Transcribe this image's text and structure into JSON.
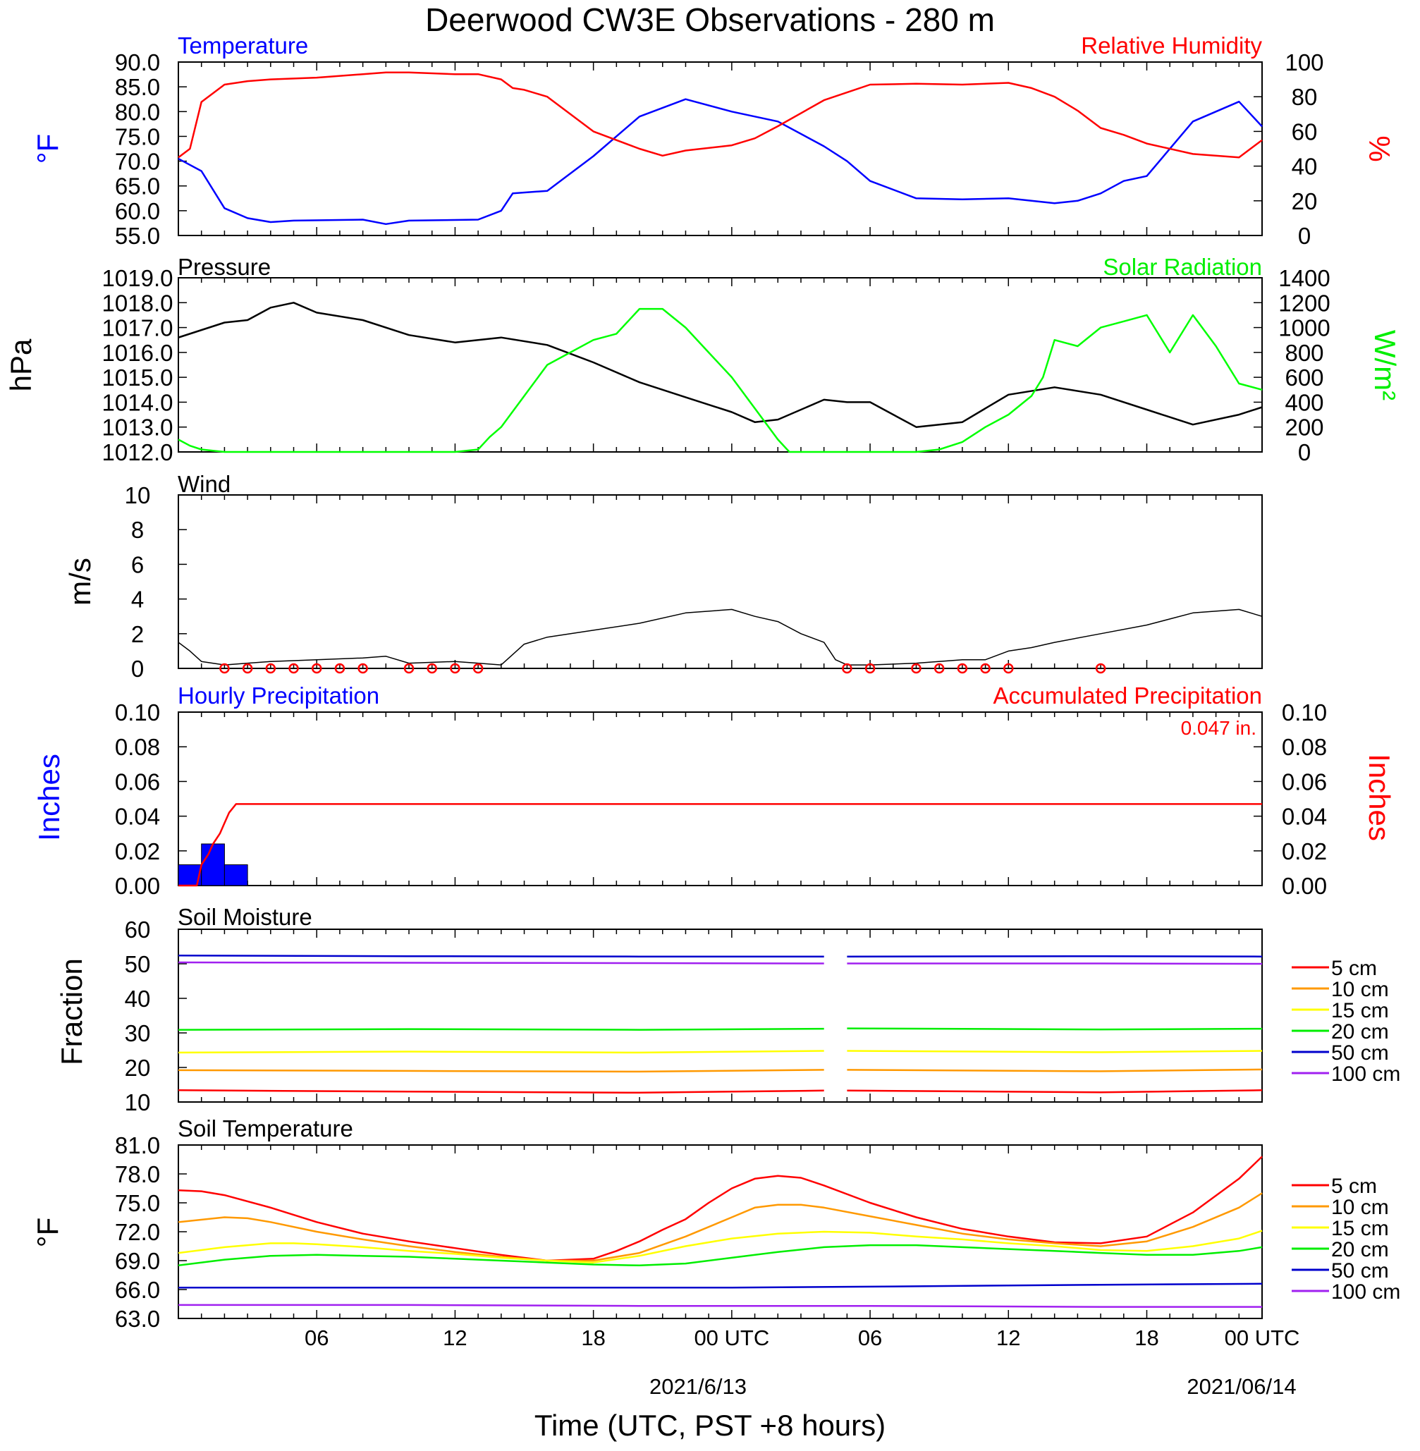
{
  "figure": {
    "title": "Deerwood CW3E Observations - 280 m",
    "xlabel": "Time (UTC, PST +8 hours)",
    "x_ticks": [
      "06",
      "12",
      "18",
      "00 UTC",
      "06",
      "12",
      "18",
      "00 UTC"
    ],
    "x_dates": [
      "2021/6/13",
      "2021/06/14"
    ],
    "colors": {
      "temperature": "#0000ff",
      "humidity": "#ff0000",
      "pressure": "#000000",
      "solar": "#00ff00",
      "precip_bar": "#0000ff",
      "accum": "#ff0000"
    }
  },
  "legends": {
    "soil_depths": [
      "5 cm",
      "10 cm",
      "15 cm",
      "20 cm",
      "50 cm",
      "100 cm"
    ],
    "soil_colors": [
      "#ff0000",
      "#ff9900",
      "#ffff00",
      "#00ee00",
      "#0000cc",
      "#a020f0"
    ]
  },
  "chart_data": [
    {
      "type": "line",
      "panel": "temperature_humidity",
      "title_left": "Temperature",
      "title_right": "Relative Humidity",
      "ylabel": "°F",
      "ylabel_right": "%",
      "ylim": [
        55,
        90
      ],
      "ylim_right": [
        0,
        100
      ],
      "y_ticks": [
        "90.0",
        "85.0",
        "80.0",
        "75.0",
        "70.0",
        "65.0",
        "60.0",
        "55.0"
      ],
      "y_ticks_right": [
        "100",
        "80",
        "60",
        "40",
        "20",
        "0"
      ],
      "series": [
        {
          "name": "Temperature",
          "axis": "left",
          "color": "#0000ff",
          "x": [
            0,
            1,
            2,
            3,
            4,
            5,
            8,
            9,
            10,
            13,
            14,
            14.5,
            16,
            18,
            20,
            22,
            24,
            26,
            28,
            29,
            30,
            32,
            34,
            36,
            38,
            39,
            40,
            41,
            42,
            44,
            46,
            47
          ],
          "y": [
            70.5,
            68,
            60.5,
            58.5,
            57.7,
            58,
            58.2,
            57.3,
            58,
            58.2,
            60,
            63.5,
            64,
            71,
            79,
            82.5,
            80,
            78,
            73,
            70,
            66,
            62.5,
            62.3,
            62.5,
            61.5,
            62,
            63.5,
            66,
            67,
            78,
            82,
            77
          ]
        },
        {
          "name": "Relative Humidity",
          "axis": "right",
          "color": "#ff0000",
          "x": [
            0,
            0.5,
            1,
            2,
            3,
            4,
            6,
            8,
            9,
            10,
            12,
            13,
            14,
            14.5,
            15,
            16,
            18,
            20,
            21,
            22,
            24,
            25,
            26,
            28,
            30,
            32,
            34,
            36,
            37,
            38,
            39,
            40,
            41,
            42,
            44,
            46,
            47
          ],
          "y": [
            45,
            50,
            77,
            87,
            89,
            90,
            91,
            93,
            94,
            94,
            93,
            93,
            90,
            85,
            84,
            80,
            60,
            50,
            46,
            49,
            52,
            56,
            63,
            78,
            87,
            87.5,
            87,
            88,
            85,
            80,
            72,
            62,
            58,
            53,
            47,
            45,
            55
          ]
        }
      ]
    },
    {
      "type": "line",
      "panel": "pressure_solar",
      "title_left": "Pressure",
      "title_right": "Solar Radiation",
      "ylabel": "hPa",
      "ylabel_right": "W/m²",
      "ylim": [
        1012,
        1019
      ],
      "ylim_right": [
        0,
        1400
      ],
      "y_ticks": [
        "1019.0",
        "1018.0",
        "1017.0",
        "1016.0",
        "1015.0",
        "1014.0",
        "1013.0",
        "1012.0"
      ],
      "y_ticks_right": [
        "1400",
        "1200",
        "1000",
        "800",
        "600",
        "400",
        "200",
        "0"
      ],
      "series": [
        {
          "name": "Pressure",
          "axis": "left",
          "color": "#000000",
          "x": [
            0,
            2,
            3,
            4,
            5,
            6,
            8,
            10,
            12,
            14,
            16,
            18,
            20,
            22,
            24,
            25,
            26,
            28,
            29,
            30,
            32,
            34,
            36,
            38,
            40,
            42,
            44,
            46,
            47
          ],
          "y": [
            1016.6,
            1017.2,
            1017.3,
            1017.8,
            1018,
            1017.6,
            1017.3,
            1016.7,
            1016.4,
            1016.6,
            1016.3,
            1015.6,
            1014.8,
            1014.2,
            1013.6,
            1013.2,
            1013.3,
            1014.1,
            1014,
            1014,
            1013,
            1013.2,
            1014.3,
            1014.6,
            1014.3,
            1013.7,
            1013.1,
            1013.5,
            1013.8
          ]
        },
        {
          "name": "Solar Radiation",
          "axis": "right",
          "color": "#00ff00",
          "x": [
            0,
            0.5,
            1,
            2,
            4,
            8,
            12,
            13,
            13.5,
            14,
            15,
            16,
            18,
            19,
            20,
            21,
            22,
            23,
            24,
            25,
            26,
            26.5,
            27,
            28,
            30,
            32,
            33,
            34,
            35,
            36,
            37,
            37.5,
            38,
            39,
            40,
            41,
            42,
            43,
            44,
            45,
            46,
            47
          ],
          "y": [
            100,
            50,
            20,
            0,
            0,
            0,
            0,
            20,
            120,
            200,
            450,
            700,
            900,
            950,
            1150,
            1150,
            1000,
            800,
            600,
            350,
            100,
            0,
            0,
            0,
            0,
            0,
            20,
            80,
            200,
            300,
            450,
            600,
            900,
            850,
            1000,
            1050,
            1100,
            800,
            1100,
            850,
            550,
            500
          ]
        }
      ]
    },
    {
      "type": "line",
      "panel": "wind",
      "title_left": "Wind",
      "ylabel": "m/s",
      "ylim": [
        0,
        10
      ],
      "y_ticks": [
        "10",
        "8",
        "6",
        "4",
        "2",
        "0"
      ],
      "series": [
        {
          "name": "Wind",
          "axis": "left",
          "color": "#000000",
          "x": [
            0,
            0.5,
            1,
            2,
            3,
            4,
            6,
            8,
            9,
            10,
            12,
            13,
            14,
            14.5,
            15,
            16,
            18,
            20,
            22,
            24,
            25,
            26,
            27,
            28,
            28.5,
            29,
            30,
            32,
            34,
            35,
            36,
            37,
            38,
            40,
            42,
            44,
            46,
            47
          ],
          "y": [
            1.5,
            1.0,
            0.4,
            0.2,
            0.3,
            0.4,
            0.5,
            0.6,
            0.7,
            0.3,
            0.4,
            0.3,
            0.2,
            0.8,
            1.4,
            1.8,
            2.2,
            2.6,
            3.2,
            3.4,
            3.0,
            2.7,
            2.0,
            1.5,
            0.5,
            0.2,
            0.2,
            0.3,
            0.5,
            0.5,
            1.0,
            1.2,
            1.5,
            2.0,
            2.5,
            3.2,
            3.4,
            3.0
          ]
        }
      ],
      "calm_circles_x": [
        2,
        3,
        4,
        5,
        6,
        7,
        8,
        10,
        11,
        12,
        13,
        29,
        30,
        32,
        33,
        34,
        35,
        36,
        40
      ]
    },
    {
      "type": "bar",
      "panel": "precipitation",
      "title_left": "Hourly Precipitation",
      "title_right": "Accumulated Precipitation",
      "annotation": "0.047 in.",
      "ylabel": "Inches",
      "ylabel_right": "Inches",
      "ylim": [
        0,
        0.1
      ],
      "ylim_right": [
        0,
        0.1
      ],
      "y_ticks": [
        "0.10",
        "0.08",
        "0.06",
        "0.04",
        "0.02",
        "0.00"
      ],
      "y_ticks_right": [
        "0.10",
        "0.08",
        "0.06",
        "0.04",
        "0.02",
        "0.00"
      ],
      "hourly": {
        "name": "Hourly Precipitation",
        "x_start": [
          0,
          1,
          2
        ],
        "values": [
          0.012,
          0.024,
          0.012
        ]
      },
      "series": [
        {
          "name": "Accumulated Precipitation",
          "axis": "right",
          "color": "#ff0000",
          "x": [
            0,
            0.8,
            1.0,
            1.3,
            1.5,
            1.8,
            2.0,
            2.2,
            2.5,
            47
          ],
          "y": [
            0,
            0,
            0.012,
            0.018,
            0.024,
            0.03,
            0.036,
            0.042,
            0.047,
            0.047
          ]
        }
      ]
    },
    {
      "type": "line",
      "panel": "soil_moisture",
      "title_left": "Soil Moisture",
      "ylabel": "Fraction",
      "ylim": [
        10,
        60
      ],
      "y_ticks": [
        "60",
        "50",
        "40",
        "30",
        "20",
        "10"
      ],
      "gap_x": [
        28,
        29
      ],
      "series": [
        {
          "name": "5 cm",
          "color": "#ff0000",
          "x": [
            0,
            10,
            20,
            28,
            29,
            40,
            47
          ],
          "y": [
            13.4,
            13.0,
            12.7,
            13.3,
            13.3,
            12.8,
            13.4
          ]
        },
        {
          "name": "10 cm",
          "color": "#ff9900",
          "x": [
            0,
            10,
            20,
            28,
            29,
            40,
            47
          ],
          "y": [
            19.2,
            19.0,
            18.8,
            19.3,
            19.3,
            18.9,
            19.4
          ]
        },
        {
          "name": "15 cm",
          "color": "#ffff00",
          "x": [
            0,
            10,
            20,
            28,
            29,
            40,
            47
          ],
          "y": [
            24.3,
            24.6,
            24.3,
            24.8,
            24.8,
            24.4,
            24.8
          ]
        },
        {
          "name": "20 cm",
          "color": "#00ee00",
          "x": [
            0,
            10,
            20,
            28,
            29,
            40,
            47
          ],
          "y": [
            30.9,
            31.1,
            30.9,
            31.2,
            31.3,
            31.0,
            31.2
          ]
        },
        {
          "name": "50 cm",
          "color": "#0000cc",
          "x": [
            0,
            10,
            20,
            28,
            29,
            40,
            47
          ],
          "y": [
            52.4,
            52.2,
            52.1,
            52.1,
            52.1,
            52.2,
            52.1
          ]
        },
        {
          "name": "100 cm",
          "color": "#a020f0",
          "x": [
            0,
            10,
            20,
            28,
            29,
            40,
            47
          ],
          "y": [
            50.4,
            50.3,
            50.2,
            50.1,
            50.1,
            50.1,
            50.0
          ]
        }
      ]
    },
    {
      "type": "line",
      "panel": "soil_temperature",
      "title_left": "Soil Temperature",
      "ylabel": "°F",
      "ylim": [
        63,
        81
      ],
      "y_ticks": [
        "81.0",
        "78.0",
        "75.0",
        "72.0",
        "69.0",
        "66.0",
        "63.0"
      ],
      "series": [
        {
          "name": "5 cm",
          "color": "#ff0000",
          "x": [
            0,
            1,
            2,
            4,
            6,
            8,
            10,
            12,
            14,
            16,
            18,
            19,
            20,
            21,
            22,
            23,
            24,
            25,
            26,
            27,
            28,
            30,
            32,
            34,
            36,
            38,
            40,
            42,
            44,
            46,
            47
          ],
          "y": [
            76.3,
            76.2,
            75.8,
            74.5,
            73,
            71.8,
            71,
            70.3,
            69.6,
            69,
            69.2,
            70,
            71,
            72.2,
            73.3,
            75,
            76.5,
            77.5,
            77.8,
            77.6,
            76.8,
            75,
            73.5,
            72.3,
            71.5,
            70.9,
            70.8,
            71.5,
            74,
            77.5,
            79.8
          ]
        },
        {
          "name": "10 cm",
          "color": "#ff9900",
          "x": [
            0,
            2,
            3,
            4,
            6,
            8,
            10,
            12,
            14,
            16,
            18,
            20,
            22,
            24,
            25,
            26,
            27,
            28,
            30,
            32,
            34,
            36,
            38,
            40,
            42,
            44,
            46,
            47
          ],
          "y": [
            73,
            73.5,
            73.4,
            73,
            72,
            71.2,
            70.5,
            69.9,
            69.4,
            69,
            69,
            69.8,
            71.5,
            73.5,
            74.5,
            74.8,
            74.8,
            74.5,
            73.6,
            72.7,
            71.8,
            71.2,
            70.8,
            70.5,
            71,
            72.5,
            74.5,
            76
          ]
        },
        {
          "name": "15 cm",
          "color": "#ffff00",
          "x": [
            0,
            2,
            4,
            5,
            6,
            8,
            10,
            12,
            14,
            16,
            18,
            20,
            22,
            24,
            26,
            28,
            30,
            32,
            34,
            36,
            38,
            40,
            42,
            44,
            46,
            47
          ],
          "y": [
            69.8,
            70.4,
            70.8,
            70.8,
            70.7,
            70.4,
            70,
            69.7,
            69.3,
            69,
            68.8,
            69.5,
            70.5,
            71.3,
            71.8,
            72,
            71.9,
            71.5,
            71.2,
            70.8,
            70.5,
            70.1,
            70,
            70.5,
            71.3,
            72.1
          ]
        },
        {
          "name": "20 cm",
          "color": "#00ee00",
          "x": [
            0,
            2,
            4,
            6,
            8,
            10,
            12,
            14,
            16,
            18,
            20,
            22,
            24,
            26,
            28,
            30,
            32,
            34,
            36,
            38,
            40,
            42,
            44,
            46,
            47
          ],
          "y": [
            68.5,
            69.1,
            69.5,
            69.6,
            69.5,
            69.4,
            69.2,
            69,
            68.8,
            68.6,
            68.5,
            68.7,
            69.3,
            69.9,
            70.4,
            70.6,
            70.6,
            70.4,
            70.2,
            70,
            69.8,
            69.6,
            69.6,
            70,
            70.4
          ]
        },
        {
          "name": "50 cm",
          "color": "#0000cc",
          "x": [
            0,
            10,
            20,
            24,
            30,
            40,
            47
          ],
          "y": [
            66.2,
            66.2,
            66.2,
            66.2,
            66.3,
            66.5,
            66.6
          ]
        },
        {
          "name": "100 cm",
          "color": "#a020f0",
          "x": [
            0,
            10,
            20,
            30,
            40,
            47
          ],
          "y": [
            64.4,
            64.4,
            64.3,
            64.3,
            64.2,
            64.2
          ]
        }
      ]
    }
  ]
}
